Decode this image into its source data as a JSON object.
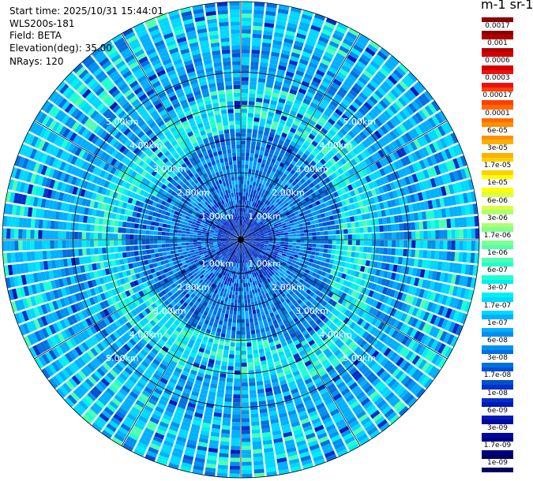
{
  "header": {
    "start_time": "Start time: 2025/10/31 15:44:01",
    "instrument": "WLS200s-181",
    "field": "Field: BETA",
    "elevation": "Elevation(deg): 35.00",
    "nrays": "NRays: 120"
  },
  "colorbar": {
    "title": "m-1 sr-1",
    "ticks": [
      "0.0017",
      "0.001",
      "0.0006",
      "0.0003",
      "0.00017",
      "0.0001",
      "6e-05",
      "3e-05",
      "1.7e-05",
      "1e-05",
      "6e-06",
      "3e-06",
      "1.7e-06",
      "1e-06",
      "6e-07",
      "3e-07",
      "1.7e-07",
      "1e-07",
      "6e-08",
      "3e-08",
      "1.7e-08",
      "1e-08",
      "6e-09",
      "3e-09",
      "1.7e-09",
      "1e-09"
    ],
    "colors": [
      "#8b0000",
      "#b00000",
      "#d40000",
      "#ee1010",
      "#ff4000",
      "#ff6a00",
      "#ff9000",
      "#ffb000",
      "#ffd000",
      "#ffff00",
      "#dcff40",
      "#b0ff70",
      "#80ff90",
      "#50ffb0",
      "#20ffd0",
      "#00f0f0",
      "#00d8ff",
      "#00b0ff",
      "#0090f0",
      "#0070e0",
      "#0050d0",
      "#0030c8",
      "#0018b8",
      "#0008a0",
      "#000080",
      "#000060"
    ]
  },
  "chart_data": {
    "type": "heatmap",
    "projection": "polar (PPI)",
    "rays": 120,
    "range_rings_km": [
      1,
      2,
      3,
      4,
      5
    ],
    "ring_labels": [
      "1.00km",
      "2.00km",
      "3.00km",
      "4.00km",
      "5.00km"
    ],
    "spokes_deg": [
      0,
      30,
      60,
      90,
      120,
      150,
      180,
      210,
      240,
      270,
      300,
      330
    ],
    "max_range_km": 5.9,
    "field": "BETA",
    "value_range": [
      1e-09,
      0.0017
    ],
    "scale": "log",
    "description_bands_km": [
      {
        "range": [
          0,
          1.0
        ],
        "level": "1e-08"
      },
      {
        "range": [
          1.0,
          2.6
        ],
        "level": "1.7e-08"
      },
      {
        "range": [
          2.6,
          3.5
        ],
        "level": "1.7e-07"
      },
      {
        "range": [
          3.5,
          5.9
        ],
        "level": "6e-08"
      }
    ]
  }
}
